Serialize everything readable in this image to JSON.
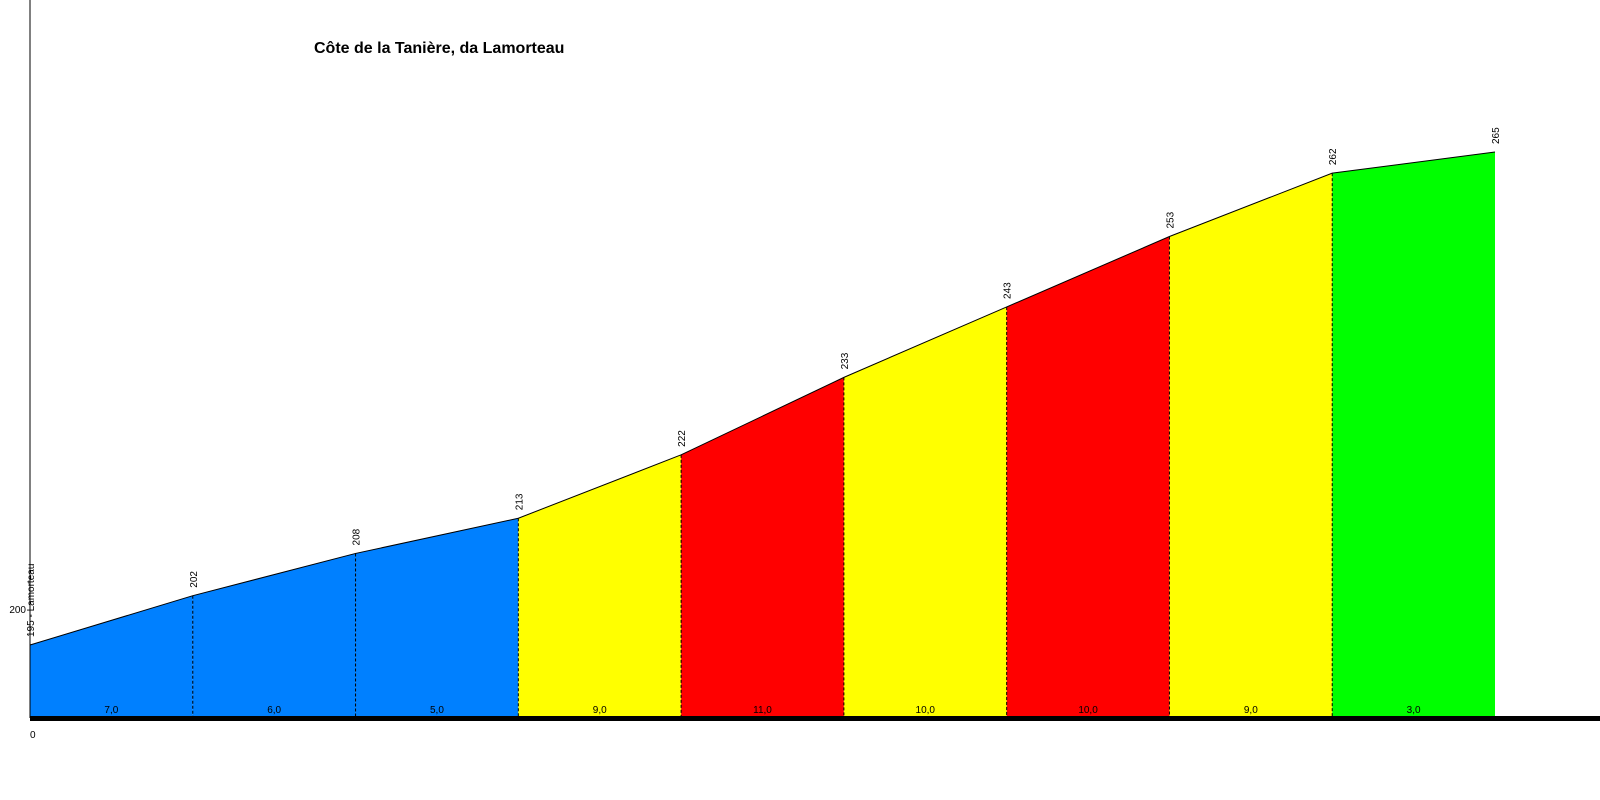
{
  "chart_data": {
    "type": "area",
    "title": "Côte de la Tanière, da Lamorteau",
    "start_label": "195 - Lamorteau",
    "y_tick_label": "200",
    "y_tick_value": 200,
    "x_tick_label": "0",
    "y_range": [
      175,
      275
    ],
    "points": [
      {
        "x": 0,
        "elevation": 195,
        "label": "195 - Lamorteau"
      },
      {
        "x": 1,
        "elevation": 202,
        "label": "202"
      },
      {
        "x": 2,
        "elevation": 208,
        "label": "208"
      },
      {
        "x": 3,
        "elevation": 213,
        "label": "213"
      },
      {
        "x": 4,
        "elevation": 222,
        "label": "222"
      },
      {
        "x": 5,
        "elevation": 233,
        "label": "233"
      },
      {
        "x": 6,
        "elevation": 243,
        "label": "243"
      },
      {
        "x": 7,
        "elevation": 253,
        "label": "253"
      },
      {
        "x": 8,
        "elevation": 262,
        "label": "262"
      },
      {
        "x": 9,
        "elevation": 265,
        "label": "265"
      }
    ],
    "segments": [
      {
        "gradient_label": "7,0",
        "color": "#0080ff"
      },
      {
        "gradient_label": "6,0",
        "color": "#0080ff"
      },
      {
        "gradient_label": "5,0",
        "color": "#0080ff"
      },
      {
        "gradient_label": "9,0",
        "color": "#ffff00"
      },
      {
        "gradient_label": "11,0",
        "color": "#ff0000"
      },
      {
        "gradient_label": "10,0",
        "color": "#ffff00"
      },
      {
        "gradient_label": "10,0",
        "color": "#ff0000"
      },
      {
        "gradient_label": "9,0",
        "color": "#ffff00"
      },
      {
        "gradient_label": "3,0",
        "color": "#00ff00"
      }
    ]
  }
}
